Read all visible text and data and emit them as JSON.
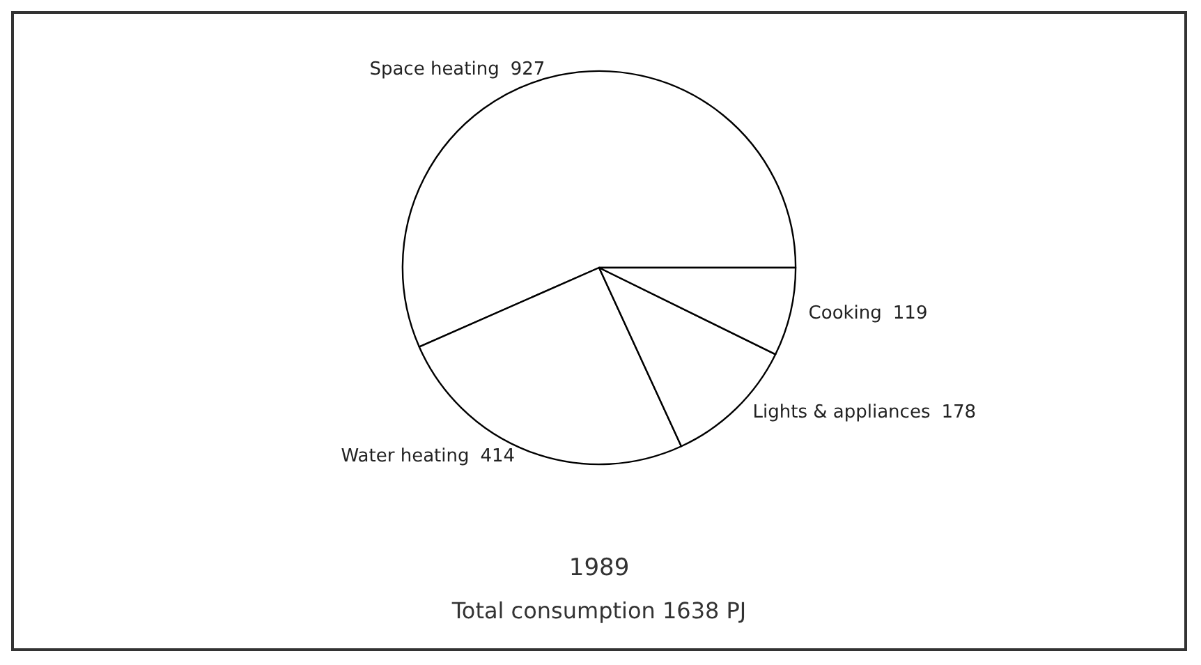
{
  "chart_data": {
    "type": "pie",
    "title": "1989",
    "subtitle": "Total consumption 1638 PJ",
    "categories": [
      "Space heating",
      "Water heating",
      "Lights & appliances",
      "Cooking"
    ],
    "values": [
      927,
      414,
      178,
      119
    ],
    "colors": [
      "#ffffff",
      "#ffffff",
      "#ffffff",
      "#ffffff"
    ],
    "data_labels": true,
    "legend": false
  }
}
